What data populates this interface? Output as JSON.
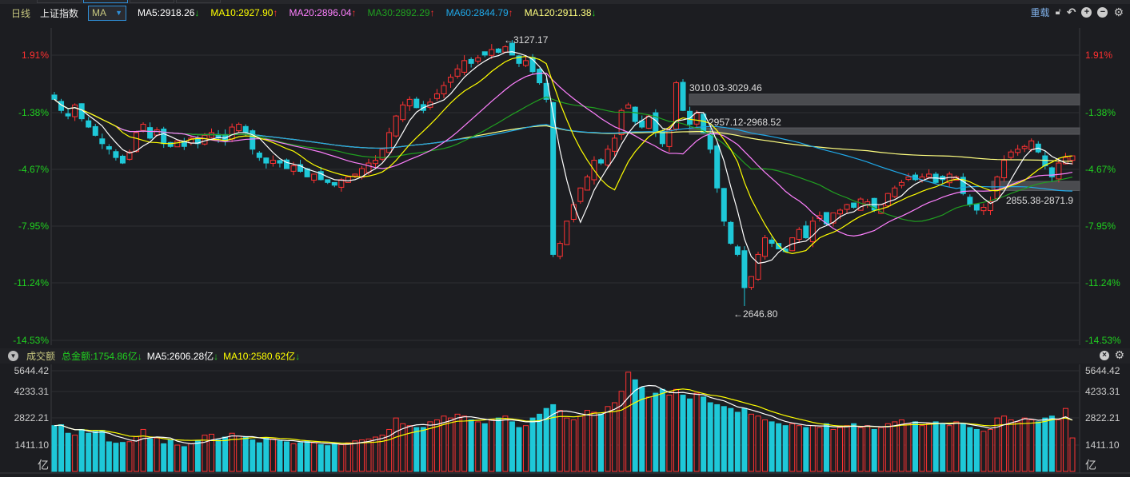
{
  "toolbar": {
    "period": "日线",
    "index_name": "上证指数",
    "indicator": "MA",
    "ma": [
      {
        "label": "MA5:2918.26",
        "dir": "down",
        "color": "#ffffff"
      },
      {
        "label": "MA10:2927.90",
        "dir": "up",
        "color": "#ffff00"
      },
      {
        "label": "MA20:2896.04",
        "dir": "up",
        "color": "#ff80ff"
      },
      {
        "label": "MA30:2892.29",
        "dir": "up",
        "color": "#20a020"
      },
      {
        "label": "MA60:2844.79",
        "dir": "up",
        "color": "#1fa8e8"
      },
      {
        "label": "MA120:2911.38",
        "dir": "down",
        "color": "#ffff80"
      }
    ],
    "reload": "重载",
    "icons": [
      "lock-icon",
      "undo-icon",
      "zoom-in-icon",
      "zoom-out-icon",
      "gear-icon"
    ]
  },
  "price_axis": [
    {
      "label": "1.91%",
      "color": "#ff3030"
    },
    {
      "label": "-1.38%",
      "color": "#20d020"
    },
    {
      "label": "-4.67%",
      "color": "#20d020"
    },
    {
      "label": "-7.95%",
      "color": "#20d020"
    },
    {
      "label": "-11.24%",
      "color": "#20d020"
    },
    {
      "label": "-14.53%",
      "color": "#20d020"
    }
  ],
  "annotations": {
    "high": "←3127.17",
    "low": "←2646.80"
  },
  "zones": [
    {
      "label": "3010.03-3029.46",
      "low": 3010.03,
      "high": 3029.46
    },
    {
      "label": "2957.12-2968.52",
      "low": 2957.12,
      "high": 2968.52
    },
    {
      "label": "2855.38-2871.9",
      "low": 2855.38,
      "high": 2871.9
    }
  ],
  "volume": {
    "title": "成交额",
    "total": "总金额:1754.86亿",
    "ma5": "MA5:2606.28亿",
    "ma10": "MA10:2580.62亿",
    "axis": [
      "5644.42",
      "4233.31",
      "2822.21",
      "1411.10"
    ],
    "unit": "亿"
  },
  "colors": {
    "up": "#ff3232",
    "down": "#1ec8d8",
    "ma5": "#ffffff",
    "ma10": "#ffff00",
    "ma20": "#ff80ff",
    "ma30": "#20a020",
    "ma60": "#1fa8e8",
    "ma120": "#ffff80"
  },
  "chart_data": {
    "type": "candlestick",
    "high_mark": 3127.17,
    "low_mark": 2646.8,
    "closes": [
      3020,
      3000,
      2990,
      3010,
      2985,
      2970,
      2955,
      2940,
      2930,
      2915,
      2905,
      2925,
      2960,
      2975,
      2950,
      2965,
      2940,
      2935,
      2945,
      2935,
      2950,
      2940,
      2955,
      2960,
      2950,
      2945,
      2970,
      2975,
      2960,
      2930,
      2915,
      2905,
      2910,
      2905,
      2895,
      2900,
      2890,
      2880,
      2885,
      2875,
      2870,
      2865,
      2875,
      2880,
      2885,
      2895,
      2905,
      2910,
      2930,
      2960,
      2990,
      3010,
      3020,
      3005,
      3000,
      3015,
      3030,
      3045,
      3060,
      3075,
      3090,
      3085,
      3095,
      3100,
      3110,
      3105,
      3115,
      3100,
      3085,
      3090,
      3070,
      3050,
      3020,
      2740,
      2760,
      2800,
      2830,
      2860,
      2880,
      2910,
      2905,
      2930,
      2950,
      3000,
      3010,
      2980,
      2970,
      2990,
      2960,
      2940,
      2965,
      3050,
      3000,
      2975,
      2995,
      2960,
      2930,
      2860,
      2800,
      2760,
      2740,
      2680,
      2700,
      2740,
      2770,
      2760,
      2750,
      2745,
      2770,
      2785,
      2770,
      2800,
      2810,
      2795,
      2815,
      2820,
      2830,
      2825,
      2840,
      2835,
      2820,
      2830,
      2850,
      2860,
      2870,
      2880,
      2875,
      2880,
      2885,
      2870,
      2875,
      2885,
      2880,
      2850,
      2830,
      2820,
      2825,
      2835,
      2880,
      2910,
      2925,
      2930,
      2935,
      2945,
      2925,
      2900,
      2880,
      2905,
      2915,
      2918
    ],
    "volumes": [
      2400,
      2450,
      2000,
      1900,
      2200,
      2000,
      2100,
      2150,
      1550,
      1480,
      1520,
      1560,
      1820,
      2200,
      1700,
      1750,
      1450,
      1650,
      1380,
      1300,
      1450,
      1620,
      1900,
      1950,
      1650,
      1800,
      2000,
      1850,
      1800,
      1650,
      1500,
      1750,
      1700,
      1600,
      1550,
      1450,
      1500,
      1600,
      1500,
      1400,
      1350,
      1450,
      1400,
      1500,
      1600,
      1650,
      1700,
      1800,
      1900,
      2200,
      2800,
      2500,
      2400,
      2300,
      2300,
      2600,
      2700,
      2900,
      2800,
      3000,
      2900,
      2700,
      2600,
      2500,
      2700,
      2800,
      2900,
      2600,
      2300,
      2400,
      2800,
      3000,
      3300,
      3500,
      3200,
      2800,
      2700,
      2900,
      3200,
      3100,
      3000,
      3400,
      3600,
      4200,
      5200,
      4800,
      4400,
      3900,
      4100,
      4300,
      4000,
      4300,
      4000,
      3800,
      4100,
      3900,
      3600,
      3500,
      3400,
      3300,
      3100,
      3300,
      3000,
      2900,
      2700,
      2600,
      2500,
      2400,
      2500,
      2400,
      2300,
      2400,
      2300,
      2500,
      2200,
      2300,
      2400,
      2500,
      2300,
      2400,
      2200,
      2300,
      2500,
      2600,
      2700,
      2500,
      2600,
      2400,
      2500,
      2600,
      2500,
      2400,
      2600,
      2500,
      2300,
      2200,
      2100,
      2200,
      2800,
      2900,
      2700,
      2600,
      2800,
      2700,
      2600,
      2800,
      2900,
      2700,
      3300,
      1754.86
    ],
    "volume_ylim": [
      0,
      5644.42
    ]
  }
}
